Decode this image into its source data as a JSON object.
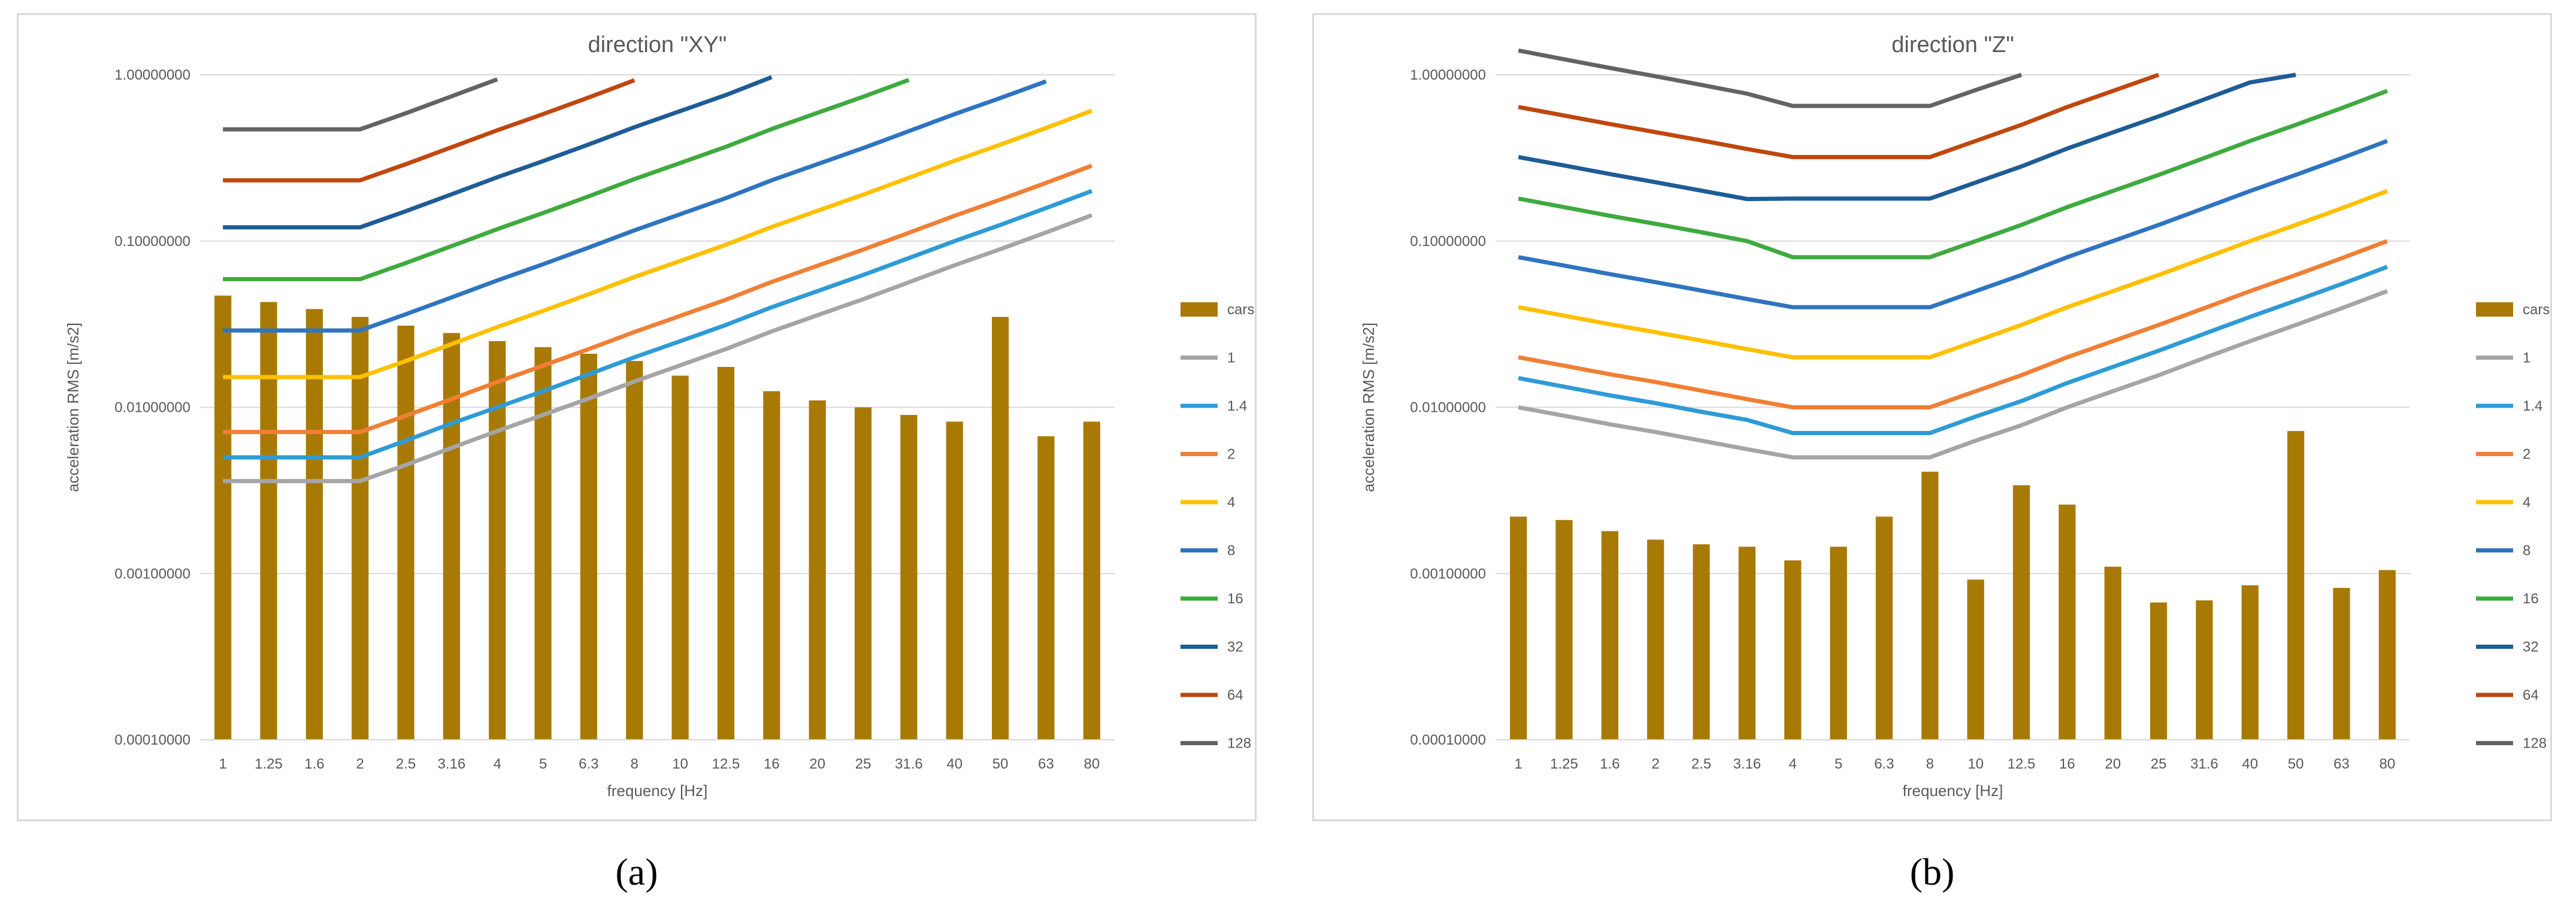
{
  "captions": {
    "a": "(a)",
    "b": "(b)"
  },
  "chart_data": [
    {
      "type": "bar",
      "title": "direction \"XY\"",
      "xlabel": "frequency [Hz]",
      "ylabel": "acceleration RMS [m/s2]",
      "yscale": "log",
      "ylim": [
        0.0001,
        1.0
      ],
      "ytick_labels": [
        "0.00010000",
        "0.00100000",
        "0.01000000",
        "0.10000000",
        "1.00000000"
      ],
      "categories": [
        "1",
        "1.25",
        "1.6",
        "2",
        "2.5",
        "3.16",
        "4",
        "5",
        "6.3",
        "8",
        "10",
        "12.5",
        "16",
        "20",
        "25",
        "31.6",
        "40",
        "50",
        "63",
        "80"
      ],
      "legend_position": "right",
      "grid": "horizontal",
      "series": [
        {
          "name": "cars",
          "kind": "bar",
          "color": "#a87a05",
          "values": [
            0.047,
            0.043,
            0.039,
            0.035,
            0.031,
            0.028,
            0.025,
            0.023,
            0.021,
            0.019,
            0.0155,
            0.0175,
            0.0125,
            0.011,
            0.01,
            0.009,
            0.0082,
            0.035,
            0.0067,
            0.0082
          ]
        },
        {
          "name": "1",
          "kind": "line",
          "color": "#a5a5a5",
          "values": [
            0.0036,
            0.0036,
            0.0036,
            0.0036,
            0.0045,
            0.0057,
            0.0072,
            0.009,
            0.0113,
            0.0143,
            0.0179,
            0.0224,
            0.0286,
            0.0358,
            0.0447,
            0.0565,
            0.0715,
            0.0894,
            0.1126,
            0.143
          ]
        },
        {
          "name": "1.4",
          "kind": "line",
          "color": "#2e9bd6",
          "values": [
            0.005,
            0.005,
            0.005,
            0.005,
            0.0063,
            0.008,
            0.01,
            0.0125,
            0.0158,
            0.02,
            0.025,
            0.0313,
            0.04,
            0.05,
            0.0625,
            0.079,
            0.1,
            0.125,
            0.158,
            0.2
          ]
        },
        {
          "name": "2",
          "kind": "line",
          "color": "#f07f35",
          "values": [
            0.0071,
            0.0071,
            0.0071,
            0.0071,
            0.0089,
            0.0112,
            0.0142,
            0.0178,
            0.0224,
            0.0284,
            0.0355,
            0.0444,
            0.0568,
            0.071,
            0.0888,
            0.1122,
            0.142,
            0.1775,
            0.2237,
            0.284
          ]
        },
        {
          "name": "4",
          "kind": "line",
          "color": "#ffc000",
          "values": [
            0.0152,
            0.0152,
            0.0152,
            0.0152,
            0.019,
            0.024,
            0.0304,
            0.038,
            0.0479,
            0.0608,
            0.076,
            0.095,
            0.1216,
            0.152,
            0.19,
            0.2402,
            0.304,
            0.38,
            0.4788,
            0.608
          ]
        },
        {
          "name": "8",
          "kind": "line",
          "color": "#2f74c0",
          "values": [
            0.029,
            0.029,
            0.029,
            0.029,
            0.0363,
            0.0458,
            0.058,
            0.0725,
            0.0914,
            0.116,
            0.145,
            0.1813,
            0.232,
            0.29,
            0.3625,
            0.4582,
            0.58,
            0.725,
            0.9135,
            null
          ]
        },
        {
          "name": "16",
          "kind": "line",
          "color": "#3faa3f",
          "values": [
            0.059,
            0.059,
            0.059,
            0.059,
            0.0738,
            0.0932,
            0.118,
            0.1475,
            0.1859,
            0.236,
            0.295,
            0.3688,
            0.472,
            0.59,
            0.7375,
            0.932,
            null,
            null,
            null,
            null
          ]
        },
        {
          "name": "32",
          "kind": "line",
          "color": "#1f5c96",
          "values": [
            0.121,
            0.121,
            0.121,
            0.121,
            0.1513,
            0.1912,
            0.242,
            0.3025,
            0.3812,
            0.484,
            0.605,
            0.7563,
            0.968,
            null,
            null,
            null,
            null,
            null,
            null,
            null
          ]
        },
        {
          "name": "64",
          "kind": "line",
          "color": "#c0470f",
          "values": [
            0.232,
            0.232,
            0.232,
            0.232,
            0.29,
            0.3666,
            0.464,
            0.58,
            0.7308,
            0.928,
            null,
            null,
            null,
            null,
            null,
            null,
            null,
            null,
            null,
            null
          ]
        },
        {
          "name": "128",
          "kind": "line",
          "color": "#636363",
          "values": [
            0.47,
            0.47,
            0.47,
            0.47,
            0.5875,
            0.7426,
            0.94,
            null,
            null,
            null,
            null,
            null,
            null,
            null,
            null,
            null,
            null,
            null,
            null,
            null
          ]
        }
      ]
    },
    {
      "type": "bar",
      "title": "direction \"Z\"",
      "xlabel": "frequency [Hz]",
      "ylabel": "acceleration RMS [m/s2]",
      "yscale": "log",
      "ylim": [
        0.0001,
        1.0
      ],
      "ytick_labels": [
        "0.00010000",
        "0.00100000",
        "0.01000000",
        "0.10000000",
        "1.00000000"
      ],
      "categories": [
        "1",
        "1.25",
        "1.6",
        "2",
        "2.5",
        "3.16",
        "4",
        "5",
        "6.3",
        "8",
        "10",
        "12.5",
        "16",
        "20",
        "25",
        "31.6",
        "40",
        "50",
        "63",
        "80"
      ],
      "legend_position": "right",
      "grid": "horizontal",
      "series": [
        {
          "name": "cars",
          "kind": "bar",
          "color": "#a87a05",
          "values": [
            0.0022,
            0.0021,
            0.0018,
            0.0016,
            0.0015,
            0.00145,
            0.0012,
            0.00145,
            0.0022,
            0.0041,
            0.00092,
            0.0034,
            0.0026,
            0.0011,
            0.00067,
            0.00069,
            0.00085,
            0.0072,
            0.00082,
            0.00105
          ]
        },
        {
          "name": "1",
          "kind": "line",
          "color": "#a5a5a5",
          "values": [
            0.01,
            0.0089,
            0.0079,
            0.0071,
            0.0063,
            0.0056,
            0.005,
            0.005,
            0.005,
            0.005,
            0.0063,
            0.0078,
            0.01,
            0.0125,
            0.0156,
            0.0198,
            0.025,
            0.0313,
            0.0394,
            0.05
          ]
        },
        {
          "name": "1.4",
          "kind": "line",
          "color": "#2e9bd6",
          "values": [
            0.015,
            0.0133,
            0.0118,
            0.0106,
            0.0094,
            0.0084,
            0.007,
            0.007,
            0.007,
            0.007,
            0.0088,
            0.0109,
            0.014,
            0.0175,
            0.0219,
            0.0277,
            0.035,
            0.0438,
            0.0551,
            0.07
          ]
        },
        {
          "name": "2",
          "kind": "line",
          "color": "#f07f35",
          "values": [
            0.02,
            0.0178,
            0.0158,
            0.0142,
            0.0126,
            0.0112,
            0.01,
            0.01,
            0.01,
            0.01,
            0.0125,
            0.0156,
            0.02,
            0.025,
            0.0313,
            0.0395,
            0.05,
            0.0625,
            0.0788,
            0.1
          ]
        },
        {
          "name": "4",
          "kind": "line",
          "color": "#ffc000",
          "values": [
            0.04,
            0.0356,
            0.0316,
            0.0283,
            0.0252,
            0.0224,
            0.02,
            0.02,
            0.02,
            0.02,
            0.025,
            0.0313,
            0.04,
            0.05,
            0.0625,
            0.079,
            0.1,
            0.125,
            0.1575,
            0.2
          ]
        },
        {
          "name": "8",
          "kind": "line",
          "color": "#2f74c0",
          "values": [
            0.08,
            0.0712,
            0.0633,
            0.0566,
            0.0504,
            0.0448,
            0.04,
            0.04,
            0.04,
            0.04,
            0.05,
            0.0625,
            0.08,
            0.1,
            0.125,
            0.158,
            0.2,
            0.25,
            0.315,
            0.4
          ]
        },
        {
          "name": "16",
          "kind": "line",
          "color": "#3faa3f",
          "values": [
            0.18,
            0.16,
            0.142,
            0.127,
            0.113,
            0.1,
            0.08,
            0.08,
            0.08,
            0.08,
            0.1,
            0.125,
            0.16,
            0.2,
            0.25,
            0.316,
            0.4,
            0.5,
            0.63,
            0.8
          ]
        },
        {
          "name": "32",
          "kind": "line",
          "color": "#1f5c96",
          "values": [
            0.32,
            0.285,
            0.253,
            0.226,
            0.201,
            0.179,
            0.18,
            0.18,
            0.18,
            0.18,
            0.225,
            0.281,
            0.36,
            0.45,
            0.5625,
            0.711,
            0.9,
            1.0,
            null,
            null
          ]
        },
        {
          "name": "64",
          "kind": "line",
          "color": "#c0470f",
          "values": [
            0.64,
            0.569,
            0.506,
            0.452,
            0.403,
            0.358,
            0.32,
            0.32,
            0.32,
            0.32,
            0.4,
            0.5,
            0.64,
            0.8,
            1.0,
            null,
            null,
            null,
            null,
            null
          ]
        },
        {
          "name": "128",
          "kind": "line",
          "color": "#636363",
          "values": [
            1.4,
            1.24,
            1.1,
            0.98,
            0.87,
            0.77,
            0.65,
            0.65,
            0.65,
            0.65,
            0.81,
            1.0,
            null,
            null,
            null,
            null,
            null,
            null,
            null,
            null
          ]
        }
      ]
    }
  ]
}
